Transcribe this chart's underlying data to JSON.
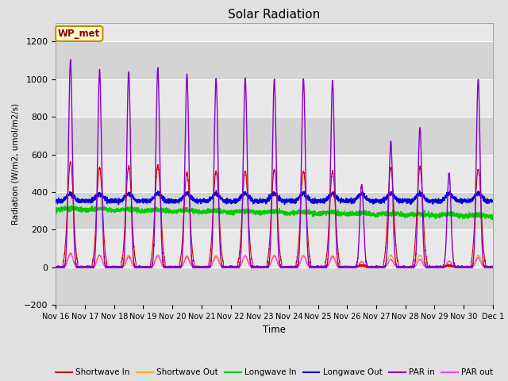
{
  "title": "Solar Radiation",
  "ylabel": "Radiation (W/m2, umol/m2/s)",
  "xlabel": "Time",
  "xlim_days": 15,
  "ylim": [
    -200,
    1300
  ],
  "yticks": [
    -200,
    0,
    200,
    400,
    600,
    800,
    1000,
    1200
  ],
  "xtick_labels": [
    "Nov 16",
    "Nov 17",
    "Nov 18",
    "Nov 19",
    "Nov 20",
    "Nov 21",
    "Nov 22",
    "Nov 23",
    "Nov 24",
    "Nov 25",
    "Nov 26",
    "Nov 27",
    "Nov 28",
    "Nov 29",
    "Nov 30",
    "Dec 1"
  ],
  "station_label": "WP_met",
  "fig_bg_color": "#e0e0e0",
  "plot_bg_color": "#e8e8e8",
  "colors": {
    "shortwave_in": "#dd0000",
    "shortwave_out": "#ffaa00",
    "longwave_in": "#00cc00",
    "longwave_out": "#0000dd",
    "par_in": "#8800cc",
    "par_out": "#ff44dd"
  },
  "legend_entries": [
    "Shortwave In",
    "Shortwave Out",
    "Longwave In",
    "Longwave Out",
    "PAR in",
    "PAR out"
  ],
  "num_days": 15,
  "shortwave_peaks": [
    560,
    530,
    535,
    540,
    500,
    510,
    510,
    520,
    510,
    510,
    10,
    530,
    530,
    10,
    520
  ],
  "par_in_peaks": [
    1100,
    1045,
    1040,
    1055,
    1025,
    1000,
    1005,
    1000,
    1000,
    995,
    440,
    670,
    740,
    500,
    1000
  ],
  "par_out_peaks": [
    75,
    65,
    55,
    60,
    55,
    55,
    60,
    60,
    60,
    55,
    30,
    42,
    42,
    32,
    50
  ],
  "lw_in_base": 305,
  "lw_out_base": 352
}
